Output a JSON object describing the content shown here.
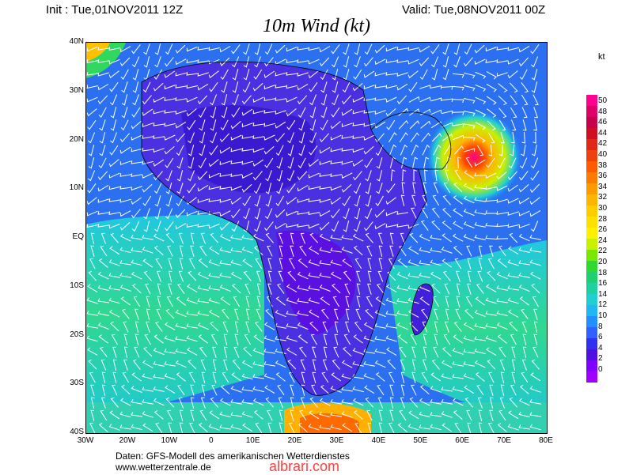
{
  "header": {
    "init": "Init : Tue,01NOV2011 12Z",
    "valid": "Valid: Tue,08NOV2011 00Z",
    "title": "10m Wind (kt)"
  },
  "map": {
    "lat_labels": [
      "40N",
      "30N",
      "20N",
      "10N",
      "EQ",
      "10S",
      "20S",
      "30S",
      "40S"
    ],
    "lon_labels": [
      "30W",
      "20W",
      "10W",
      "0",
      "10E",
      "20E",
      "30E",
      "40E",
      "50E",
      "60E",
      "70E",
      "80E"
    ],
    "lat_range": [
      -40,
      40
    ],
    "lon_range": [
      -30,
      80
    ],
    "cyclone_center": {
      "lon": 62,
      "lat": 17
    }
  },
  "colorbar": {
    "unit": "kt",
    "labels": [
      "50",
      "48",
      "46",
      "44",
      "42",
      "40",
      "38",
      "36",
      "34",
      "32",
      "30",
      "28",
      "26",
      "24",
      "22",
      "20",
      "18",
      "16",
      "14",
      "12",
      "10",
      "8",
      "6",
      "4",
      "2",
      "0"
    ],
    "colors": [
      "#ff0090",
      "#e0006a",
      "#c8004c",
      "#d01020",
      "#e02818",
      "#f04010",
      "#ff5a00",
      "#ff7a00",
      "#ff9a00",
      "#ffb400",
      "#ffcc00",
      "#ffe000",
      "#fff000",
      "#c8f000",
      "#78e800",
      "#30d830",
      "#20d070",
      "#20d0a0",
      "#20d0d0",
      "#20b8f0",
      "#2090ff",
      "#3060ff",
      "#3030f0",
      "#5010e0",
      "#8000ff",
      "#a000ff"
    ]
  },
  "footer": {
    "line1": "Daten: GFS-Modell des amerikanischen Wetterdienstes",
    "line2": "www.wetterzentrale.de",
    "watermark": "albrari.com"
  }
}
